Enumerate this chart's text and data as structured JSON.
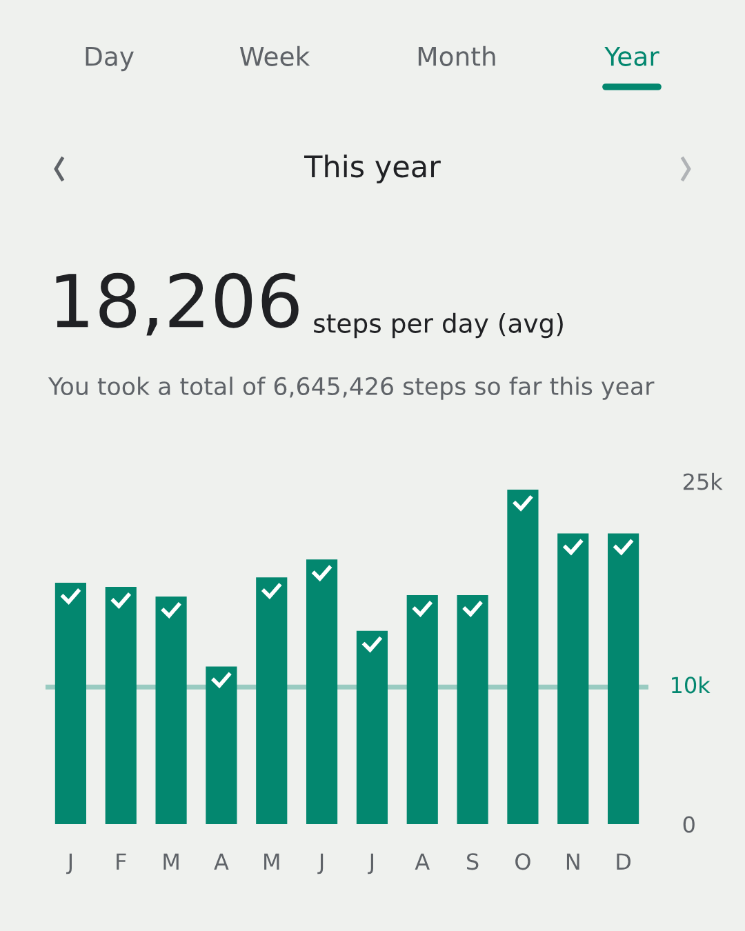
{
  "chart_data": {
    "type": "bar",
    "title": "18,206",
    "subtitle": "steps per day (avg)",
    "annotations": [
      "Day",
      "Week",
      "Month",
      "Year",
      "This year",
      "You took a total of 6,645,426 steps so far this year"
    ],
    "categories": [
      "J",
      "F",
      "M",
      "A",
      "M",
      "J",
      "J",
      "A",
      "S",
      "O",
      "N",
      "D"
    ],
    "values": [
      17600,
      17300,
      16600,
      11500,
      18000,
      19300,
      14100,
      16700,
      16700,
      24400,
      21200,
      21200
    ],
    "color": "#03876f",
    "ylim": [
      0,
      25000
    ],
    "yticks": [
      0,
      {
        "value": 25000,
        "label": "25k"
      }
    ],
    "ref_lines": [
      {
        "axis": "y",
        "value": 10000,
        "label": "10k",
        "color": "#99cbc1"
      }
    ],
    "grid": false,
    "legend": false
  }
}
